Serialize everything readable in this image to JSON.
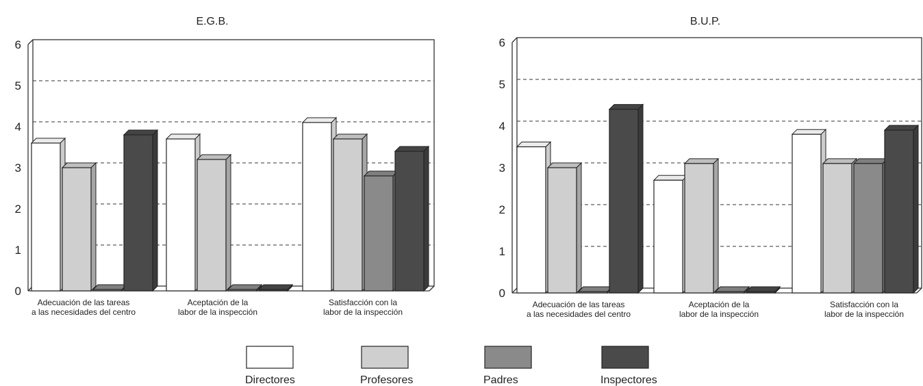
{
  "chart_data": [
    {
      "type": "bar",
      "title": "E.G.B.",
      "categories": [
        [
          "Adecuación de las tareas",
          "a las necesidades del centro"
        ],
        [
          "Aceptación de la",
          "labor de la inspección"
        ],
        [
          "Satisfacción con la",
          "labor de la inspección"
        ]
      ],
      "series": [
        {
          "name": "Directores",
          "values": [
            3.6,
            3.7,
            4.1
          ]
        },
        {
          "name": "Profesores",
          "values": [
            3.0,
            3.2,
            3.7
          ]
        },
        {
          "name": "Padres",
          "values": [
            0,
            0,
            2.8
          ]
        },
        {
          "name": "Inspectores",
          "values": [
            3.8,
            0,
            3.4
          ]
        }
      ],
      "ylim": [
        0,
        6
      ],
      "yticks": [
        0,
        1,
        2,
        3,
        4,
        5,
        6
      ],
      "grid": "dashed horizontal"
    },
    {
      "type": "bar",
      "title": "B.U.P.",
      "categories": [
        [
          "Adecuación de las tareas",
          "a las necesidades del centro"
        ],
        [
          "Aceptación de la",
          "labor de la inspección"
        ],
        [
          "Satisfacción con la",
          "labor de la inspección"
        ]
      ],
      "series": [
        {
          "name": "Directores",
          "values": [
            3.5,
            2.7,
            3.8
          ]
        },
        {
          "name": "Profesores",
          "values": [
            3.0,
            3.1,
            3.1
          ]
        },
        {
          "name": "Padres",
          "values": [
            0,
            0,
            3.1
          ]
        },
        {
          "name": "Inspectores",
          "values": [
            4.4,
            0,
            3.9
          ]
        }
      ],
      "ylim": [
        0,
        6
      ],
      "yticks": [
        0,
        1,
        2,
        3,
        4,
        5,
        6
      ],
      "grid": "dashed horizontal"
    }
  ],
  "legend": {
    "position": "bottom",
    "items": [
      {
        "label": "Directores",
        "color": "#ffffff"
      },
      {
        "label": "Profesores",
        "color": "#cfcfcf"
      },
      {
        "label": "Padres",
        "color": "#8a8a8a"
      },
      {
        "label": "Inspectores",
        "color": "#4a4a4a"
      }
    ]
  }
}
